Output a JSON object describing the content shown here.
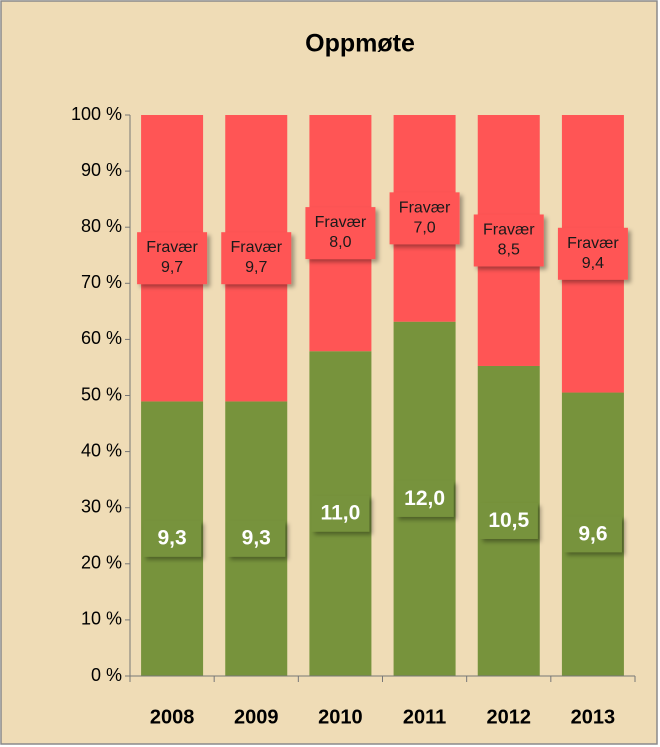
{
  "chart_data": {
    "type": "bar",
    "stacking": "percent",
    "title": "Oppmøte",
    "categories": [
      "2008",
      "2009",
      "2010",
      "2011",
      "2012",
      "2013"
    ],
    "series": [
      {
        "color": "#77933c",
        "label_color": "#ffffff",
        "values": [
          9.3,
          9.3,
          11.0,
          12.0,
          10.5,
          9.6
        ],
        "value_labels": [
          "9,3",
          "9,3",
          "11,0",
          "12,0",
          "10,5",
          "9,6"
        ]
      },
      {
        "name": "Fravær",
        "color": "#ff5555",
        "label_color": "#1a1a1a",
        "values": [
          9.7,
          9.7,
          8.0,
          7.0,
          8.5,
          9.4
        ],
        "value_labels": [
          "9,7",
          "9,7",
          "8,0",
          "7,0",
          "8,5",
          "9,4"
        ]
      }
    ],
    "ylim": [
      0,
      100
    ],
    "yticks": [
      {
        "value": 0,
        "label": "0 %"
      },
      {
        "value": 10,
        "label": "10 %"
      },
      {
        "value": 20,
        "label": "20 %"
      },
      {
        "value": 30,
        "label": "30 %"
      },
      {
        "value": 40,
        "label": "40 %"
      },
      {
        "value": 50,
        "label": "50 %"
      },
      {
        "value": 60,
        "label": "60 %"
      },
      {
        "value": 70,
        "label": "70 %"
      },
      {
        "value": 80,
        "label": "80 %"
      },
      {
        "value": 90,
        "label": "90 %"
      },
      {
        "value": 100,
        "label": "100 %"
      }
    ]
  }
}
